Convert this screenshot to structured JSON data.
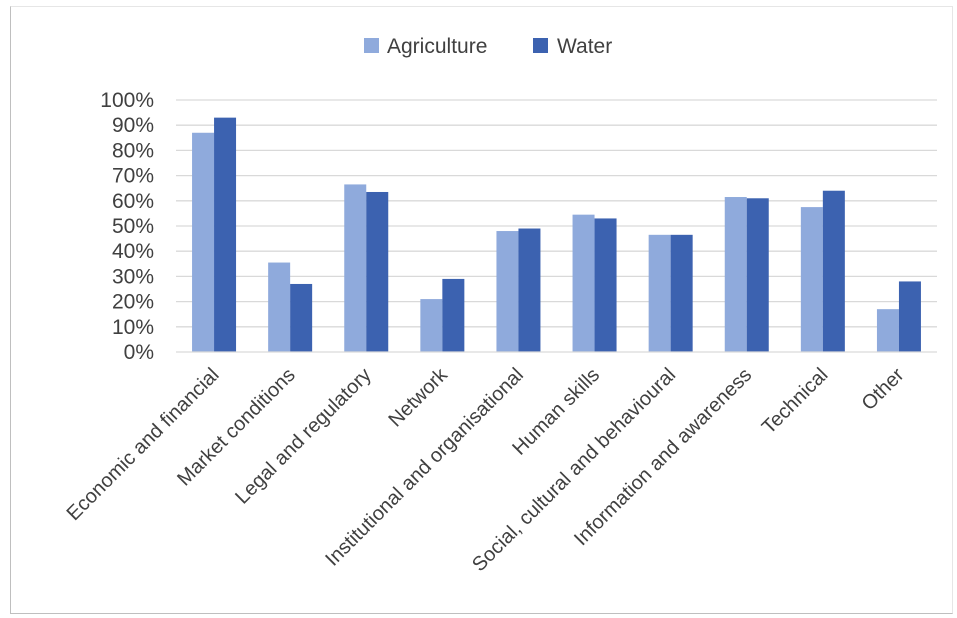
{
  "chart_data": {
    "type": "bar",
    "title": "",
    "xlabel": "",
    "ylabel": "",
    "categories": [
      "Economic and financial",
      "Market conditions",
      "Legal and regulatory",
      "Network",
      "Institutional and organisational",
      "Human skills",
      "Social, cultural and behavioural",
      "Information and awareness",
      "Technical",
      "Other"
    ],
    "series": [
      {
        "name": "Agriculture",
        "color": "#8faadc",
        "values": [
          0.87,
          0.355,
          0.665,
          0.21,
          0.48,
          0.545,
          0.465,
          0.615,
          0.575,
          0.17
        ]
      },
      {
        "name": "Water",
        "color": "#3c62b0",
        "values": [
          0.93,
          0.27,
          0.635,
          0.29,
          0.49,
          0.53,
          0.465,
          0.61,
          0.64,
          0.28
        ]
      }
    ],
    "ylim": [
      0,
      1
    ],
    "yticks": [
      "0%",
      "10%",
      "20%",
      "30%",
      "40%",
      "50%",
      "60%",
      "70%",
      "80%",
      "90%",
      "100%"
    ],
    "grid": true,
    "legend_position": "top-center"
  }
}
